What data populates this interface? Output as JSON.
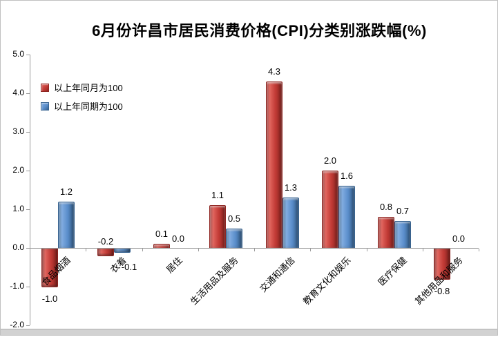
{
  "chart_data": {
    "type": "bar",
    "title": "6月份许昌市居民消费价格(CPI)分类别涨跌幅(%)",
    "categories": [
      "食品烟酒",
      "衣着",
      "居住",
      "生活用品及服务",
      "交通和通信",
      "教育文化和娱乐",
      "医疗保健",
      "其他用品和服务"
    ],
    "series": [
      {
        "name": "以上年同月为100",
        "color": "#c23b36",
        "color_light": "#e0635c",
        "color_dark": "#8f2521",
        "values": [
          -1.0,
          -0.2,
          0.1,
          1.1,
          4.3,
          2.0,
          0.8,
          -0.8
        ]
      },
      {
        "name": "以上年同期为100",
        "color": "#5b8ecb",
        "color_light": "#7fabe0",
        "color_dark": "#35618f",
        "values": [
          1.2,
          -0.1,
          0.0,
          0.5,
          1.3,
          1.6,
          0.7,
          0.0
        ]
      }
    ],
    "ylim": [
      -2.0,
      5.0
    ],
    "ytick_step": 1.0,
    "ytick_labels": [
      "5.0",
      "4.0",
      "3.0",
      "2.0",
      "1.0",
      "0.0",
      "-1.0",
      "-2.0"
    ],
    "grid": false,
    "legend_position": "top-left",
    "label_decimals": 1,
    "axis_color": "#9a9a9a"
  }
}
